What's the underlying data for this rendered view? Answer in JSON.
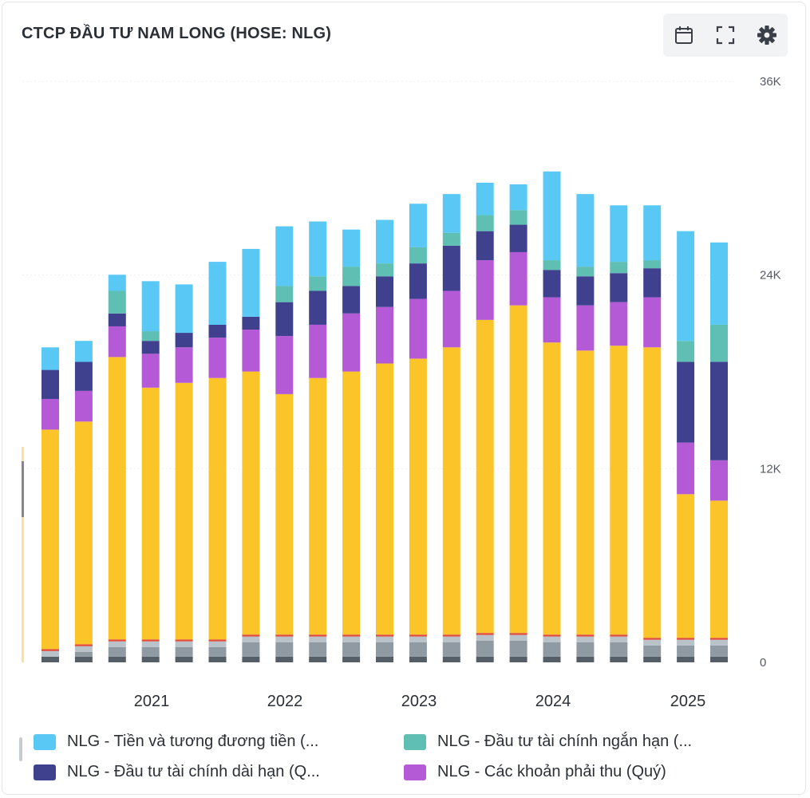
{
  "title": "CTCP ĐẦU TƯ NAM LONG (HOSE: NLG)",
  "toolbar": [
    {
      "name": "calendar-icon"
    },
    {
      "name": "fullscreen-icon"
    },
    {
      "name": "settings-icon"
    }
  ],
  "legend": [
    {
      "label": "NLG - Tiền và tương đương tiền (...",
      "color": "#5ac8f5"
    },
    {
      "label": "NLG - Đầu tư tài chính ngắn hạn (...",
      "color": "#5fbfb3"
    },
    {
      "label": "NLG - Đầu tư tài chính dài hạn (Q...",
      "color": "#3f418f"
    },
    {
      "label": "NLG - Các khoản phải thu (Quý)",
      "color": "#b45ad6"
    }
  ],
  "chart_data": {
    "type": "bar",
    "stacked": true,
    "y_ticks": [
      "0",
      "12K",
      "24K",
      "36K"
    ],
    "ylim": [
      0,
      36000
    ],
    "x_ticks": [
      "2021",
      "2022",
      "2023",
      "2024",
      "2025"
    ],
    "series_colors": {
      "dark_gray": "#555e66",
      "gray": "#8f9aa3",
      "light_gray": "#b9c2c9",
      "red": "#e14b3b",
      "yellow": "#fbc52a",
      "receivables": "#b45ad6",
      "long_term_investment": "#3f418f",
      "short_term_investment": "#5fbfb3",
      "cash": "#5ac8f5"
    },
    "bars": [
      {
        "gray": 700,
        "yellow": 13600,
        "receivables": 1900,
        "long_term_investment": 1800,
        "short_term_investment": 0,
        "cash": 1400
      },
      {
        "gray": 1000,
        "yellow": 13800,
        "receivables": 1900,
        "long_term_investment": 1800,
        "short_term_investment": 0,
        "cash": 1300
      },
      {
        "gray": 1300,
        "yellow": 17500,
        "receivables": 1900,
        "long_term_investment": 800,
        "short_term_investment": 1400,
        "cash": 1000
      },
      {
        "gray": 1300,
        "yellow": 15600,
        "receivables": 2100,
        "long_term_investment": 800,
        "short_term_investment": 600,
        "cash": 3100
      },
      {
        "gray": 1300,
        "yellow": 15900,
        "receivables": 2200,
        "long_term_investment": 900,
        "short_term_investment": 0,
        "cash": 3000
      },
      {
        "gray": 1300,
        "yellow": 16200,
        "receivables": 2500,
        "long_term_investment": 800,
        "short_term_investment": 0,
        "cash": 3900
      },
      {
        "gray": 1600,
        "yellow": 16300,
        "receivables": 2600,
        "long_term_investment": 800,
        "short_term_investment": 0,
        "cash": 4200
      },
      {
        "gray": 1600,
        "yellow": 14900,
        "receivables": 3600,
        "long_term_investment": 2100,
        "short_term_investment": 1000,
        "cash": 3700
      },
      {
        "gray": 1600,
        "yellow": 15900,
        "receivables": 3300,
        "long_term_investment": 2100,
        "short_term_investment": 900,
        "cash": 3400
      },
      {
        "gray": 1600,
        "yellow": 16300,
        "receivables": 3600,
        "long_term_investment": 1700,
        "short_term_investment": 1200,
        "cash": 2300
      },
      {
        "gray": 1600,
        "yellow": 16800,
        "receivables": 3500,
        "long_term_investment": 1900,
        "short_term_investment": 800,
        "cash": 2700
      },
      {
        "gray": 1600,
        "yellow": 17100,
        "receivables": 3700,
        "long_term_investment": 2200,
        "short_term_investment": 1000,
        "cash": 2700
      },
      {
        "gray": 1600,
        "yellow": 17800,
        "receivables": 3500,
        "long_term_investment": 2800,
        "short_term_investment": 800,
        "cash": 2400
      },
      {
        "gray": 1700,
        "yellow": 19400,
        "receivables": 3700,
        "long_term_investment": 1800,
        "short_term_investment": 1000,
        "cash": 2000
      },
      {
        "gray": 1700,
        "yellow": 20300,
        "receivables": 3300,
        "long_term_investment": 1700,
        "short_term_investment": 900,
        "cash": 1600
      },
      {
        "gray": 1600,
        "yellow": 18100,
        "receivables": 2800,
        "long_term_investment": 1700,
        "short_term_investment": 600,
        "cash": 5500
      },
      {
        "gray": 1600,
        "yellow": 17600,
        "receivables": 2800,
        "long_term_investment": 1800,
        "short_term_investment": 600,
        "cash": 4500
      },
      {
        "gray": 1600,
        "yellow": 17900,
        "receivables": 2700,
        "long_term_investment": 1800,
        "short_term_investment": 700,
        "cash": 3500
      },
      {
        "gray": 1400,
        "yellow": 18000,
        "receivables": 3100,
        "long_term_investment": 1800,
        "short_term_investment": 500,
        "cash": 3400
      },
      {
        "gray": 1400,
        "yellow": 8900,
        "receivables": 3200,
        "long_term_investment": 5000,
        "short_term_investment": 1300,
        "cash": 6800
      },
      {
        "gray": 1400,
        "yellow": 8500,
        "receivables": 2500,
        "long_term_investment": 6100,
        "short_term_investment": 2300,
        "cash": 5100
      }
    ]
  }
}
